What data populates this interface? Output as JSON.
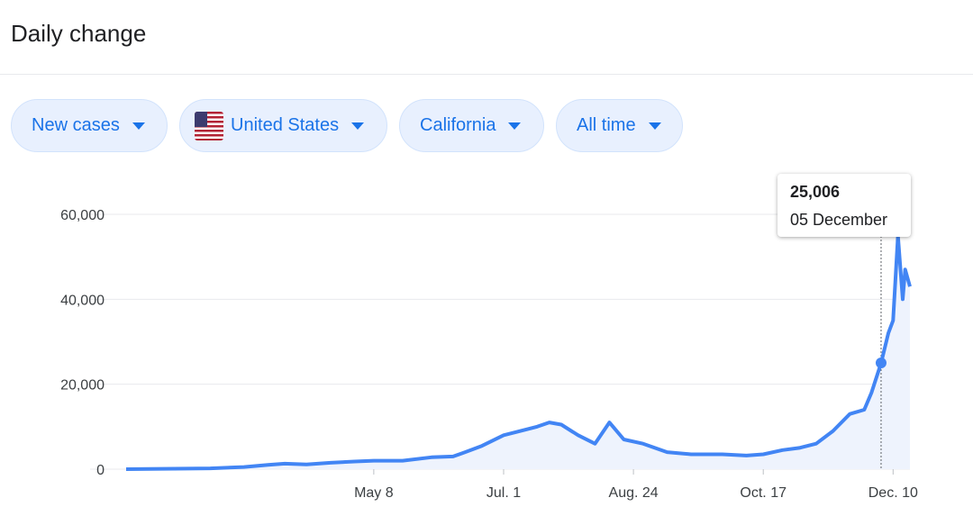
{
  "header": {
    "title": "Daily change"
  },
  "filters": [
    {
      "label": "New cases",
      "icon": "chevron-down-icon"
    },
    {
      "label": "United States",
      "icon": "us-flag-icon"
    },
    {
      "label": "California",
      "icon": "chevron-down-icon"
    },
    {
      "label": "All time",
      "icon": "chevron-down-icon"
    }
  ],
  "tooltip": {
    "value": "25,006",
    "date": "05 December"
  },
  "colors": {
    "line": "#4285f4",
    "chip_bg": "#e8f0fe",
    "chip_text": "#1a73e8"
  },
  "chart_data": {
    "type": "area",
    "title": "",
    "xlabel": "",
    "ylabel": "",
    "ylim": [
      0,
      60000
    ],
    "yticks": [
      {
        "value": 0,
        "label": "0"
      },
      {
        "value": 20000,
        "label": "20,000"
      },
      {
        "value": 40000,
        "label": "40,000"
      },
      {
        "value": 60000,
        "label": "60,000"
      }
    ],
    "xticks": [
      {
        "date": "2020-05-08",
        "label": "May 8"
      },
      {
        "date": "2020-07-01",
        "label": "Jul. 1"
      },
      {
        "date": "2020-08-24",
        "label": "Aug. 24"
      },
      {
        "date": "2020-10-17",
        "label": "Oct. 17"
      },
      {
        "date": "2020-12-10",
        "label": "Dec. 10"
      }
    ],
    "x_range": [
      "2020-01-26",
      "2020-12-17"
    ],
    "highlight": {
      "date": "2020-12-05",
      "value": 25006
    },
    "grid": true,
    "series": [
      {
        "name": "New cases",
        "points": [
          [
            "2020-01-26",
            0
          ],
          [
            "2020-02-15",
            100
          ],
          [
            "2020-03-01",
            200
          ],
          [
            "2020-03-15",
            500
          ],
          [
            "2020-03-25",
            1000
          ],
          [
            "2020-04-01",
            1300
          ],
          [
            "2020-04-10",
            1100
          ],
          [
            "2020-04-20",
            1500
          ],
          [
            "2020-04-30",
            1800
          ],
          [
            "2020-05-08",
            2000
          ],
          [
            "2020-05-20",
            2000
          ],
          [
            "2020-06-01",
            2800
          ],
          [
            "2020-06-10",
            3000
          ],
          [
            "2020-06-15",
            4000
          ],
          [
            "2020-06-22",
            5500
          ],
          [
            "2020-07-01",
            8000
          ],
          [
            "2020-07-08",
            9000
          ],
          [
            "2020-07-15",
            10000
          ],
          [
            "2020-07-20",
            11000
          ],
          [
            "2020-07-25",
            10500
          ],
          [
            "2020-08-01",
            8000
          ],
          [
            "2020-08-08",
            6000
          ],
          [
            "2020-08-14",
            11000
          ],
          [
            "2020-08-20",
            7000
          ],
          [
            "2020-08-28",
            6000
          ],
          [
            "2020-09-07",
            4000
          ],
          [
            "2020-09-17",
            3500
          ],
          [
            "2020-09-30",
            3500
          ],
          [
            "2020-10-10",
            3200
          ],
          [
            "2020-10-17",
            3500
          ],
          [
            "2020-10-25",
            4500
          ],
          [
            "2020-11-01",
            5000
          ],
          [
            "2020-11-08",
            6000
          ],
          [
            "2020-11-15",
            9000
          ],
          [
            "2020-11-22",
            13000
          ],
          [
            "2020-11-28",
            14000
          ],
          [
            "2020-12-01",
            18000
          ],
          [
            "2020-12-05",
            25006
          ],
          [
            "2020-12-08",
            32000
          ],
          [
            "2020-12-10",
            35000
          ],
          [
            "2020-12-12",
            55000
          ],
          [
            "2020-12-14",
            40000
          ],
          [
            "2020-12-15",
            47000
          ],
          [
            "2020-12-17",
            43000
          ]
        ]
      }
    ]
  }
}
